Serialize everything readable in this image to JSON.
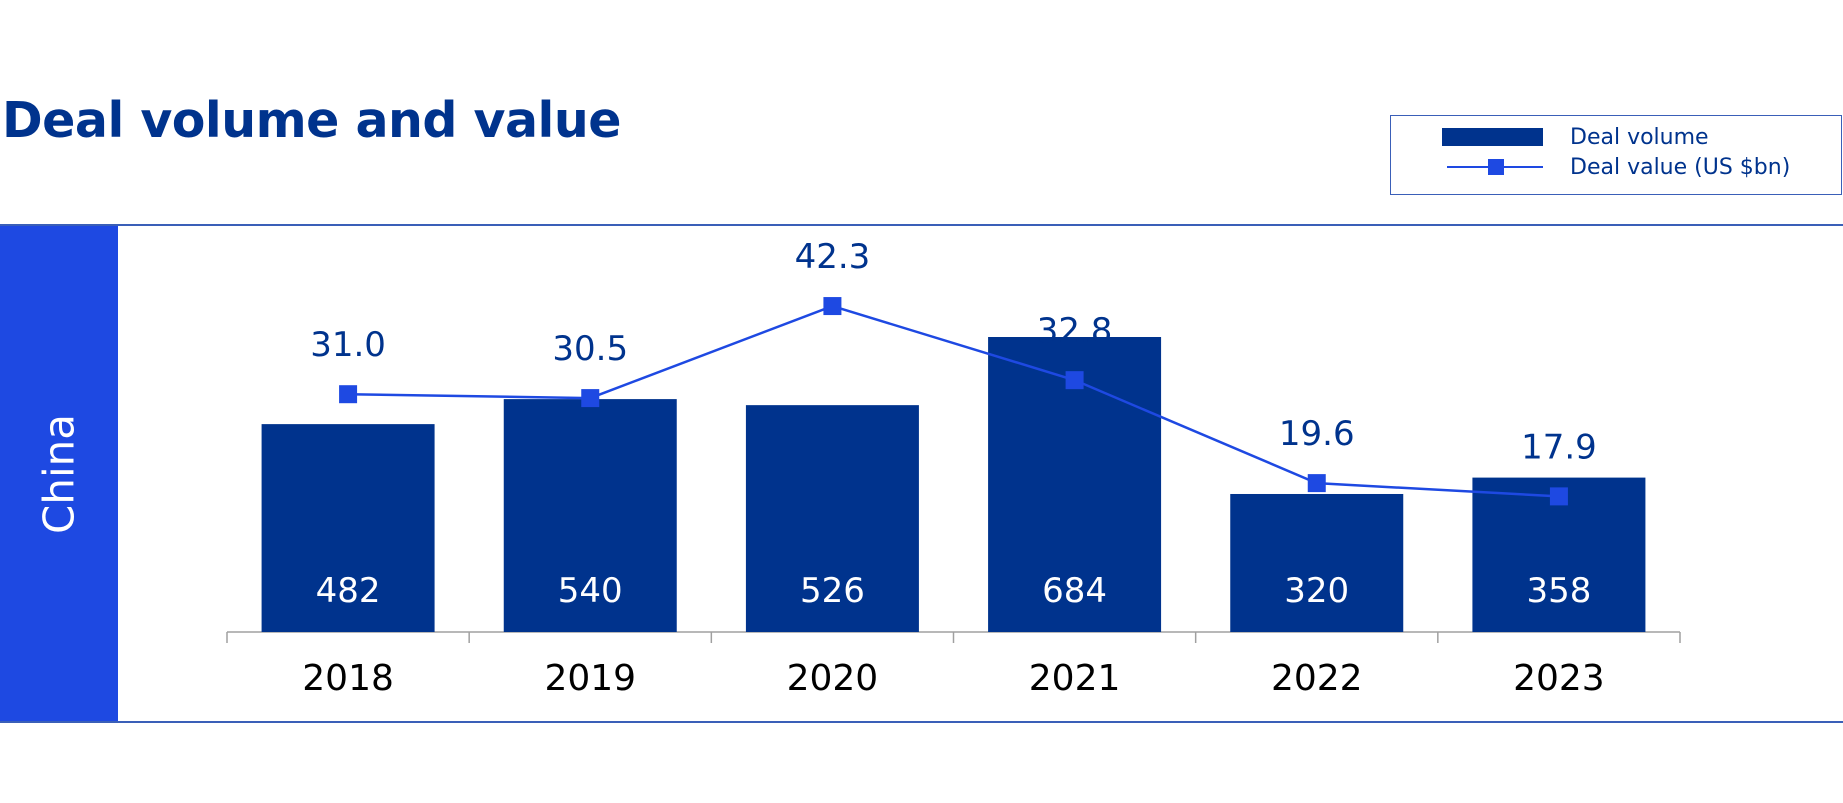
{
  "chart_data": {
    "type": "bar",
    "title": "Deal volume and value",
    "panel_label": "China",
    "categories": [
      "2018",
      "2019",
      "2020",
      "2021",
      "2022",
      "2023"
    ],
    "series": [
      {
        "name": "Deal volume",
        "type": "bar",
        "values": [
          482,
          540,
          526,
          684,
          320,
          358
        ],
        "color": "#00338D"
      },
      {
        "name": "Deal value (US $bn)",
        "type": "line",
        "marker": "square",
        "values": [
          31.0,
          30.5,
          42.3,
          32.8,
          19.6,
          17.9
        ],
        "color": "#1E49E2"
      }
    ],
    "bar_labels": [
      "482",
      "540",
      "526",
      "684",
      "320",
      "358"
    ],
    "line_labels": [
      "31.0",
      "30.5",
      "42.3",
      "32.8",
      "19.6",
      "17.9"
    ],
    "xlabel": "",
    "ylabel": "",
    "grid": false,
    "legend": {
      "placement": "top-right",
      "entries": [
        "Deal volume",
        "Deal value (US $bn)"
      ]
    },
    "colors": {
      "bar": "#00338D",
      "line": "#1E49E2",
      "panel": "#1E49E2",
      "title": "#00338D"
    }
  }
}
